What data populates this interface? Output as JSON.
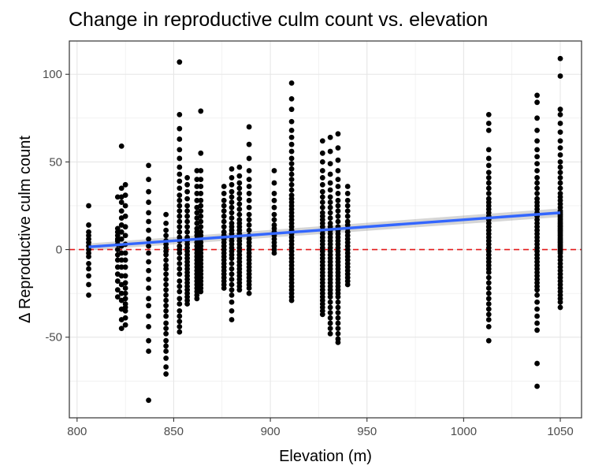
{
  "chart_data": {
    "type": "scatter",
    "title": "Change in reproductive culm count vs. elevation",
    "xlabel": "Elevation (m)",
    "ylabel": "Δ Reproductive culm count",
    "xlim": [
      796,
      1061
    ],
    "ylim": [
      -96,
      119
    ],
    "x_ticks": [
      800,
      850,
      900,
      950,
      1000,
      1050
    ],
    "y_ticks": [
      -50,
      0,
      50,
      100
    ],
    "x_tick_labels": [
      "800",
      "850",
      "900",
      "950",
      "1000",
      "1050"
    ],
    "y_tick_labels": [
      "-50",
      "0",
      "50",
      "100"
    ],
    "grid": true,
    "reference_line": {
      "y": 0,
      "color": "#e41a1c",
      "style": "dashed"
    },
    "trend_line": {
      "method": "linear",
      "x": [
        806,
        1050
      ],
      "y": [
        1.5,
        21
      ],
      "ci_lower": [
        -0.5,
        18.5
      ],
      "ci_upper": [
        3.5,
        23.5
      ],
      "color": "#3366ff"
    },
    "point_color": "#000000",
    "points": {
      "x": [
        806,
        806,
        806,
        806,
        806,
        806,
        806,
        806,
        806,
        806,
        806,
        806,
        806,
        806,
        806,
        821,
        821,
        821,
        821,
        821,
        821,
        821,
        821,
        821,
        821,
        821,
        821,
        821,
        821,
        821,
        823,
        823,
        823,
        823,
        823,
        823,
        823,
        823,
        823,
        823,
        823,
        823,
        823,
        823,
        823,
        823,
        823,
        823,
        823,
        823,
        825,
        825,
        825,
        825,
        825,
        825,
        825,
        825,
        825,
        825,
        825,
        825,
        825,
        825,
        825,
        825,
        825,
        825,
        825,
        825,
        837,
        837,
        837,
        837,
        837,
        837,
        837,
        837,
        837,
        837,
        837,
        837,
        837,
        837,
        837,
        837,
        837,
        837,
        837,
        837,
        837,
        846,
        846,
        846,
        846,
        846,
        846,
        846,
        846,
        846,
        846,
        846,
        846,
        846,
        846,
        846,
        846,
        846,
        846,
        846,
        846,
        846,
        846,
        846,
        846,
        846,
        846,
        846,
        846,
        846,
        846,
        853,
        853,
        853,
        853,
        853,
        853,
        853,
        853,
        853,
        853,
        853,
        853,
        853,
        853,
        853,
        853,
        853,
        853,
        853,
        853,
        853,
        853,
        853,
        853,
        853,
        853,
        853,
        853,
        853,
        853,
        853,
        853,
        853,
        853,
        853,
        853,
        853,
        857,
        857,
        857,
        857,
        857,
        857,
        857,
        857,
        857,
        857,
        857,
        857,
        857,
        857,
        857,
        857,
        857,
        857,
        857,
        857,
        857,
        857,
        857,
        857,
        857,
        857,
        857,
        857,
        857,
        857,
        862,
        862,
        862,
        862,
        862,
        862,
        862,
        862,
        862,
        862,
        862,
        862,
        862,
        862,
        862,
        862,
        862,
        862,
        862,
        862,
        862,
        862,
        862,
        862,
        862,
        862,
        862,
        862,
        862,
        862,
        864,
        864,
        864,
        864,
        864,
        864,
        864,
        864,
        864,
        864,
        864,
        864,
        864,
        864,
        864,
        864,
        864,
        864,
        864,
        864,
        864,
        864,
        864,
        864,
        864,
        864,
        864,
        864,
        864,
        864,
        876,
        876,
        876,
        876,
        876,
        876,
        876,
        876,
        876,
        876,
        876,
        876,
        876,
        876,
        876,
        876,
        876,
        876,
        876,
        876,
        876,
        876,
        876,
        876,
        876,
        880,
        880,
        880,
        880,
        880,
        880,
        880,
        880,
        880,
        880,
        880,
        880,
        880,
        880,
        880,
        880,
        880,
        880,
        880,
        880,
        880,
        880,
        880,
        880,
        880,
        880,
        880,
        880,
        880,
        880,
        884,
        884,
        884,
        884,
        884,
        884,
        884,
        884,
        884,
        884,
        884,
        884,
        884,
        884,
        884,
        884,
        884,
        884,
        884,
        884,
        884,
        884,
        884,
        884,
        884,
        884,
        884,
        884,
        884,
        884,
        889,
        889,
        889,
        889,
        889,
        889,
        889,
        889,
        889,
        889,
        889,
        889,
        889,
        889,
        889,
        889,
        889,
        889,
        889,
        889,
        889,
        889,
        889,
        889,
        889,
        889,
        889,
        889,
        889,
        889,
        902,
        902,
        902,
        902,
        902,
        902,
        902,
        902,
        902,
        902,
        902,
        902,
        902,
        902,
        902,
        902,
        911,
        911,
        911,
        911,
        911,
        911,
        911,
        911,
        911,
        911,
        911,
        911,
        911,
        911,
        911,
        911,
        911,
        911,
        911,
        911,
        911,
        911,
        911,
        911,
        911,
        911,
        911,
        911,
        911,
        911,
        911,
        911,
        911,
        911,
        911,
        911,
        911,
        911,
        911,
        911,
        911,
        911,
        911,
        911,
        911,
        911,
        927,
        927,
        927,
        927,
        927,
        927,
        927,
        927,
        927,
        927,
        927,
        927,
        927,
        927,
        927,
        927,
        927,
        927,
        927,
        927,
        927,
        927,
        927,
        927,
        927,
        927,
        927,
        927,
        927,
        927,
        927,
        927,
        927,
        927,
        927,
        927,
        927,
        927,
        927,
        927,
        931,
        931,
        931,
        931,
        931,
        931,
        931,
        931,
        931,
        931,
        931,
        931,
        931,
        931,
        931,
        931,
        931,
        931,
        931,
        931,
        931,
        931,
        931,
        931,
        931,
        931,
        931,
        931,
        931,
        931,
        931,
        931,
        931,
        931,
        931,
        931,
        931,
        931,
        931,
        931,
        935,
        935,
        935,
        935,
        935,
        935,
        935,
        935,
        935,
        935,
        935,
        935,
        935,
        935,
        935,
        935,
        935,
        935,
        935,
        935,
        935,
        935,
        935,
        935,
        935,
        935,
        935,
        935,
        935,
        935,
        935,
        935,
        935,
        935,
        935,
        935,
        935,
        935,
        935,
        935,
        935,
        935,
        940,
        940,
        940,
        940,
        940,
        940,
        940,
        940,
        940,
        940,
        940,
        940,
        940,
        940,
        940,
        940,
        940,
        940,
        940,
        940,
        940,
        940,
        940,
        940,
        940,
        1013,
        1013,
        1013,
        1013,
        1013,
        1013,
        1013,
        1013,
        1013,
        1013,
        1013,
        1013,
        1013,
        1013,
        1013,
        1013,
        1013,
        1013,
        1013,
        1013,
        1013,
        1013,
        1013,
        1013,
        1013,
        1013,
        1013,
        1013,
        1013,
        1013,
        1013,
        1013,
        1013,
        1013,
        1013,
        1013,
        1013,
        1013,
        1013,
        1013,
        1013,
        1013,
        1013,
        1013,
        1038,
        1038,
        1038,
        1038,
        1038,
        1038,
        1038,
        1038,
        1038,
        1038,
        1038,
        1038,
        1038,
        1038,
        1038,
        1038,
        1038,
        1038,
        1038,
        1038,
        1038,
        1038,
        1038,
        1038,
        1038,
        1038,
        1038,
        1038,
        1038,
        1038,
        1038,
        1038,
        1038,
        1038,
        1038,
        1038,
        1038,
        1038,
        1038,
        1038,
        1038,
        1038,
        1038,
        1038,
        1038,
        1038,
        1038,
        1038,
        1050,
        1050,
        1050,
        1050,
        1050,
        1050,
        1050,
        1050,
        1050,
        1050,
        1050,
        1050,
        1050,
        1050,
        1050,
        1050,
        1050,
        1050,
        1050,
        1050,
        1050,
        1050,
        1050,
        1050,
        1050,
        1050,
        1050,
        1050,
        1050,
        1050,
        1050,
        1050,
        1050,
        1050,
        1050,
        1050,
        1050,
        1050,
        1050,
        1050,
        1050,
        1050,
        1050,
        1050,
        1050,
        1050,
        1050,
        1050,
        1050,
        1050,
        1050,
        1050,
        1050,
        1050,
        1050,
        1050,
        1050,
        1050,
        1050,
        1050
      ],
      "y": [
        25,
        14,
        10,
        8,
        6,
        4,
        2,
        0,
        -2,
        -4,
        -8,
        -11,
        -15,
        -20,
        -26,
        30,
        12,
        10,
        8,
        6,
        5,
        3,
        0,
        -3,
        -6,
        -10,
        -14,
        -18,
        -23,
        -27,
        59,
        35,
        30,
        27,
        22,
        18,
        14,
        10,
        6,
        2,
        -2,
        -6,
        -10,
        -15,
        -20,
        -25,
        -29,
        -34,
        -40,
        -45,
        37,
        31,
        25,
        19,
        13,
        8,
        3,
        -2,
        -6,
        -10,
        -15,
        -19,
        -22,
        -25,
        -28,
        -31,
        -33,
        -35,
        -39,
        -43,
        48,
        40,
        33,
        27,
        21,
        16,
        11,
        6,
        2,
        -2,
        -7,
        -12,
        -17,
        -22,
        -28,
        -32,
        -38,
        -44,
        -52,
        -58,
        -86,
        20,
        15,
        11,
        8,
        5,
        3,
        1,
        -1,
        -3,
        -6,
        -9,
        -11,
        -14,
        -17,
        -20,
        -23,
        -26,
        -29,
        -32,
        -35,
        -38,
        -42,
        -45,
        -48,
        -52,
        -55,
        -58,
        -62,
        -67,
        -71,
        107,
        77,
        69,
        63,
        57,
        52,
        47,
        43,
        39,
        35,
        31,
        28,
        25,
        22,
        19,
        16,
        13,
        10,
        7,
        5,
        2,
        0,
        -2,
        -5,
        -8,
        -11,
        -14,
        -18,
        -21,
        -24,
        -28,
        -31,
        -35,
        -38,
        -41,
        -44,
        -47,
        41,
        37,
        33,
        29,
        25,
        22,
        19,
        16,
        13,
        10,
        7,
        5,
        3,
        1,
        -1,
        -3,
        -5,
        -7,
        -9,
        -11,
        -13,
        -15,
        -17,
        -19,
        -21,
        -23,
        -25,
        -27,
        -29,
        -31,
        45,
        40,
        36,
        32,
        28,
        24,
        21,
        18,
        15,
        12,
        10,
        8,
        6,
        4,
        2,
        0,
        -2,
        -4,
        -6,
        -8,
        -10,
        -12,
        -14,
        -16,
        -18,
        -20,
        -22,
        -24,
        -26,
        -28,
        79,
        55,
        45,
        40,
        36,
        32,
        28,
        25,
        22,
        19,
        16,
        13,
        10,
        8,
        6,
        4,
        2,
        0,
        -2,
        -4,
        -6,
        -8,
        -10,
        -12,
        -14,
        -16,
        -18,
        -20,
        -22,
        -24,
        36,
        32,
        28,
        25,
        22,
        19,
        16,
        13,
        10,
        8,
        6,
        4,
        2,
        0,
        -2,
        -4,
        -6,
        -8,
        -10,
        -12,
        -14,
        -16,
        -18,
        -20,
        -22,
        46,
        41,
        37,
        33,
        30,
        27,
        24,
        21,
        18,
        15,
        13,
        11,
        9,
        7,
        5,
        3,
        1,
        -1,
        -3,
        -5,
        -8,
        -11,
        -14,
        -17,
        -20,
        -23,
        -26,
        -30,
        -35,
        -40,
        47,
        42,
        38,
        35,
        32,
        29,
        26,
        23,
        20,
        17,
        15,
        13,
        11,
        9,
        7,
        5,
        3,
        1,
        -1,
        -3,
        -5,
        -7,
        -9,
        -11,
        -13,
        -15,
        -17,
        -19,
        -21,
        -23,
        70,
        60,
        52,
        45,
        40,
        36,
        32,
        28,
        24,
        20,
        17,
        14,
        11,
        8,
        6,
        4,
        2,
        0,
        -2,
        -4,
        -6,
        -8,
        -10,
        -12,
        -14,
        -16,
        -18,
        -20,
        -22,
        -25,
        45,
        38,
        32,
        28,
        24,
        20,
        17,
        14,
        12,
        10,
        8,
        6,
        4,
        2,
        0,
        -2,
        95,
        86,
        80,
        73,
        68,
        64,
        60,
        56,
        52,
        49,
        46,
        43,
        40,
        37,
        34,
        31,
        29,
        27,
        25,
        23,
        21,
        19,
        17,
        15,
        13,
        11,
        9,
        7,
        5,
        3,
        1,
        -1,
        -3,
        -5,
        -7,
        -9,
        -11,
        -13,
        -15,
        -17,
        -19,
        -21,
        -23,
        -25,
        -27,
        -29,
        62,
        55,
        50,
        45,
        41,
        37,
        33,
        30,
        27,
        24,
        21,
        19,
        17,
        15,
        13,
        11,
        9,
        7,
        5,
        3,
        1,
        -1,
        -3,
        -5,
        -7,
        -9,
        -11,
        -13,
        -15,
        -17,
        -19,
        -21,
        -23,
        -25,
        -27,
        -29,
        -31,
        -33,
        -35,
        -37,
        64,
        56,
        49,
        43,
        38,
        34,
        30,
        27,
        24,
        21,
        18,
        15,
        13,
        11,
        9,
        7,
        5,
        3,
        1,
        -1,
        -3,
        -5,
        -7,
        -9,
        -11,
        -13,
        -15,
        -17,
        -19,
        -21,
        -23,
        -25,
        -27,
        -30,
        -33,
        -36,
        -39,
        -42,
        -45,
        -48,
        66,
        58,
        51,
        45,
        40,
        36,
        32,
        28,
        25,
        22,
        19,
        16,
        13,
        11,
        9,
        7,
        5,
        3,
        1,
        -1,
        -3,
        -5,
        -7,
        -9,
        -11,
        -13,
        -15,
        -17,
        -19,
        -21,
        -23,
        -25,
        -27,
        -30,
        -33,
        -36,
        -39,
        -42,
        -45,
        -48,
        -51,
        -53,
        36,
        32,
        28,
        25,
        22,
        19,
        16,
        14,
        12,
        10,
        8,
        6,
        4,
        2,
        0,
        -2,
        -4,
        -6,
        -8,
        -10,
        -12,
        -14,
        -16,
        -18,
        -20,
        77,
        72,
        68,
        57,
        52,
        48,
        44,
        41,
        38,
        35,
        32,
        29,
        27,
        25,
        23,
        21,
        19,
        17,
        15,
        13,
        11,
        9,
        7,
        5,
        3,
        1,
        -1,
        -3,
        -5,
        -7,
        -9,
        -11,
        -13,
        -16,
        -19,
        -22,
        -25,
        -28,
        -31,
        -34,
        -37,
        -40,
        -44,
        -52,
        88,
        84,
        75,
        68,
        62,
        57,
        53,
        49,
        45,
        41,
        38,
        35,
        32,
        29,
        27,
        25,
        23,
        21,
        19,
        17,
        15,
        13,
        11,
        9,
        7,
        5,
        3,
        1,
        -1,
        -3,
        -5,
        -7,
        -9,
        -11,
        -13,
        -15,
        -17,
        -19,
        -21,
        -23,
        -26,
        -30,
        -34,
        -38,
        -42,
        -46,
        -65,
        -78,
        109,
        99,
        80,
        77,
        72,
        67,
        62,
        58,
        54,
        50,
        47,
        44,
        41,
        38,
        35,
        32,
        30,
        28,
        26,
        24,
        22,
        20,
        18,
        16,
        14,
        12,
        10,
        8,
        6,
        4,
        2,
        0,
        -2,
        -4,
        -6,
        -8,
        -10,
        -12,
        -14,
        -16,
        -18,
        -20,
        -22,
        -24,
        -26,
        -28,
        -30,
        -33,
        -1,
        1,
        3,
        5,
        7,
        9,
        11,
        13,
        15,
        17,
        19,
        21
      ]
    }
  }
}
